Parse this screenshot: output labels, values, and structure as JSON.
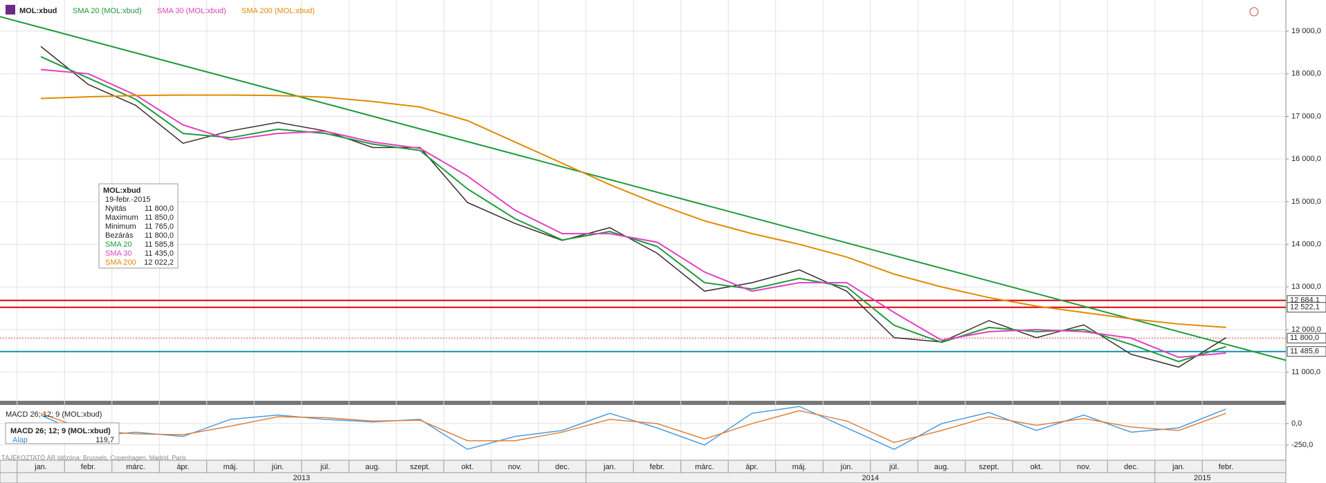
{
  "chart_data": {
    "type": "line",
    "legend": [
      "MOL:xbud",
      "SMA 20 (MOL:xbud)",
      "SMA 30 (MOL:xbud)",
      "SMA 200 (MOL:xbud)"
    ],
    "categories": [
      "jan.",
      "febr.",
      "márc.",
      "ápr.",
      "máj.",
      "jún.",
      "júl.",
      "aug.",
      "szept.",
      "okt.",
      "nov.",
      "dec.",
      "jan.",
      "febr.",
      "márc.",
      "ápr.",
      "máj.",
      "jún.",
      "júl.",
      "aug.",
      "szept.",
      "okt.",
      "nov.",
      "dec.",
      "jan.",
      "febr."
    ],
    "years": [
      "2013",
      "2014",
      "2015"
    ],
    "series": [
      {
        "name": "MOL:xbud",
        "color": "#3a2a2a",
        "values": [
          18640,
          17750,
          17260,
          16370,
          16660,
          16860,
          16660,
          16270,
          16270,
          14980,
          14490,
          14090,
          14390,
          13790,
          12900,
          13100,
          13400,
          12900,
          11810,
          11710,
          12210,
          11810,
          12110,
          11420,
          11120,
          11810
        ]
      },
      {
        "name": "SMA 20 (MOL:xbud)",
        "color": "#1a9a3a",
        "values": [
          18400,
          17900,
          17400,
          16600,
          16500,
          16700,
          16600,
          16350,
          16200,
          15300,
          14600,
          14100,
          14300,
          13950,
          13100,
          12950,
          13200,
          13000,
          12100,
          11700,
          12050,
          11950,
          12000,
          11650,
          11250,
          11600
        ]
      },
      {
        "name": "SMA 30 (MOL:xbud)",
        "color": "#e040c0",
        "values": [
          18100,
          18000,
          17500,
          16800,
          16450,
          16600,
          16650,
          16400,
          16250,
          15600,
          14800,
          14250,
          14250,
          14050,
          13350,
          12900,
          13100,
          13100,
          12400,
          11750,
          11950,
          12000,
          11950,
          11800,
          11350,
          11450
        ]
      },
      {
        "name": "SMA 200 (MOL:xbud)",
        "color": "#e08a00",
        "values": [
          17420,
          17460,
          17490,
          17500,
          17500,
          17490,
          17450,
          17350,
          17220,
          16900,
          16400,
          15900,
          15400,
          14950,
          14550,
          14250,
          14000,
          13700,
          13300,
          13000,
          12750,
          12550,
          12400,
          12250,
          12130,
          12050
        ]
      }
    ],
    "ylim": [
      10330,
      19730
    ],
    "yticks": [
      {
        "value": 11000,
        "label": "11 000,0"
      },
      {
        "value": 12000,
        "label": "12 000,0"
      },
      {
        "value": 13000,
        "label": "13 000,0"
      },
      {
        "value": 14000,
        "label": "14 000,0"
      },
      {
        "value": 15000,
        "label": "15 000,0"
      },
      {
        "value": 16000,
        "label": "16 000,0"
      },
      {
        "value": 17000,
        "label": "17 000,0"
      },
      {
        "value": 18000,
        "label": "18 000,0"
      },
      {
        "value": 19000,
        "label": "19 000,0"
      }
    ],
    "levels": [
      {
        "value": 12684.1,
        "label": "12 684,1",
        "color": "#e00000"
      },
      {
        "value": 12522.1,
        "label": "12 522,1",
        "color": "#e00000"
      },
      {
        "value": 11800.0,
        "label": "11 800,0",
        "color": "#e04040"
      },
      {
        "value": 11485.6,
        "label": "11 485,6",
        "color": "#1a8ab0"
      }
    ],
    "trendline": {
      "color": "#1a9a3a",
      "values": [
        19340,
        11280
      ]
    },
    "grid": true,
    "info": {
      "title": "MOL:xbud",
      "date": "19-febr.-2015",
      "rows": [
        [
          "Nyitás",
          "11 800,0"
        ],
        [
          "Maximum",
          "11 850,0"
        ],
        [
          "Minimum",
          "11 765,0"
        ],
        [
          "Bezárás",
          "11 800,0"
        ],
        [
          "SMA 20",
          "11 585,8"
        ],
        [
          "SMA 30",
          "11 435,0"
        ],
        [
          "SMA 200",
          "12 022,2"
        ]
      ]
    },
    "macd": {
      "title": "MACD 26; 12; 9 (MOL:xbud)",
      "box_title": "MACD 26; 12; 9 (MOL:xbud)",
      "box_label": "Alap",
      "box_value": "119,7",
      "ylim": [
        -427,
        210
      ],
      "yticks": [
        {
          "value": 0,
          "label": "0,0"
        },
        {
          "value": -250,
          "label": "-250,0"
        }
      ],
      "series": [
        {
          "name": "Alap",
          "color": "#4a9ae0",
          "values": [
            100,
            -150,
            -100,
            -150,
            50,
            100,
            50,
            20,
            50,
            -300,
            -150,
            -80,
            120,
            -50,
            -250,
            120,
            200,
            -50,
            -300,
            0,
            130,
            -80,
            100,
            -100,
            -50,
            170
          ]
        },
        {
          "color": "#e0803a",
          "values": [
            120,
            -80,
            -120,
            -130,
            -30,
            80,
            70,
            30,
            40,
            -200,
            -200,
            -100,
            50,
            0,
            -180,
            0,
            150,
            30,
            -220,
            -80,
            80,
            -20,
            60,
            -40,
            -80,
            120
          ]
        }
      ]
    },
    "footer": "TÁJÉKOZTATÓ ÁR   Időzóna: Brussels, Copenhagen, Madrid, Paris"
  }
}
